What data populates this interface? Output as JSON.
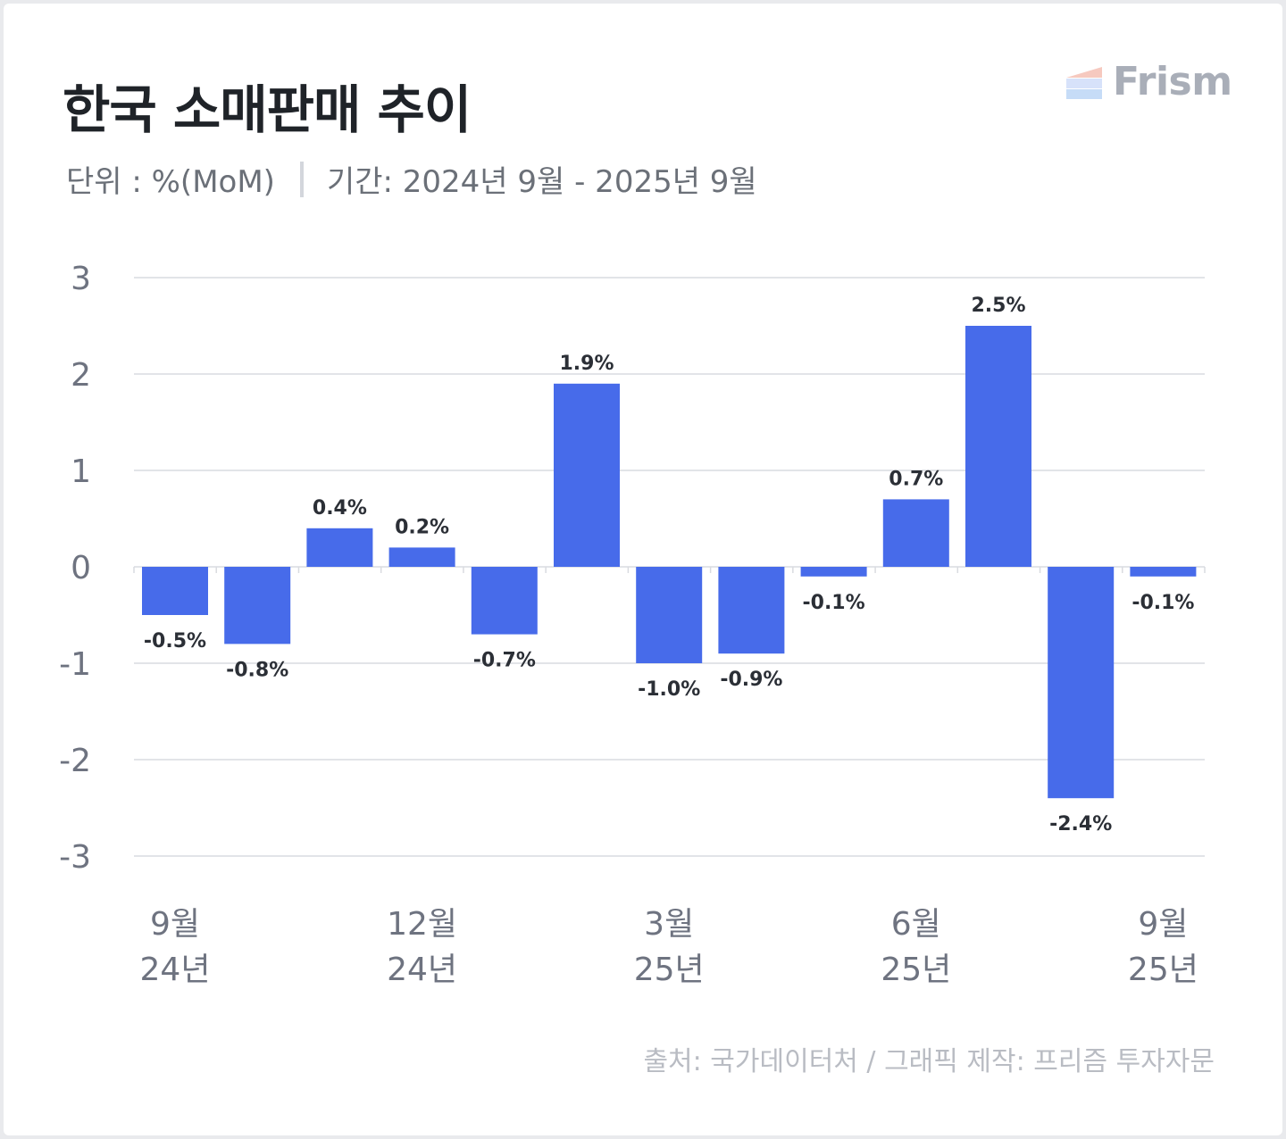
{
  "header": {
    "title": "한국 소매판매 추이",
    "unit": "단위 : %(MoM)",
    "period": "기간: 2024년 9월 - 2025년 9월"
  },
  "brand": {
    "name": "Frism"
  },
  "footer": {
    "source": "출처: 국가데이터처 / 그래픽 제작: 프리즘 투자자문"
  },
  "colors": {
    "bar": "#476bea",
    "grid": "#d9dbe0",
    "axis_text": "#6e7380",
    "label_text": "#2b2f36",
    "logo_stripes": [
      "#f6c9bf",
      "#d7e2fa",
      "#c6dcf7"
    ]
  },
  "chart_data": {
    "type": "bar",
    "title": "한국 소매판매 추이",
    "ylabel": "%(MoM)",
    "xlabel": "",
    "ylim": [
      -3,
      3
    ],
    "yticks": [
      3,
      2,
      1,
      0,
      -1,
      -2,
      -3
    ],
    "grid": true,
    "categories": [
      "2024-09",
      "2024-10",
      "2024-11",
      "2024-12",
      "2025-01",
      "2025-02",
      "2025-03",
      "2025-04",
      "2025-05",
      "2025-06",
      "2025-07",
      "2025-08",
      "2025-09"
    ],
    "values": [
      -0.5,
      -0.8,
      0.4,
      0.2,
      -0.7,
      1.9,
      -1.0,
      -0.9,
      -0.1,
      0.7,
      2.5,
      -2.4,
      -0.1
    ],
    "data_labels": [
      "-0.5%",
      "-0.8%",
      "0.4%",
      "0.2%",
      "-0.7%",
      "1.9%",
      "-1.0%",
      "-0.9%",
      "-0.1%",
      "0.7%",
      "2.5%",
      "-2.4%",
      "-0.1%"
    ],
    "xtick_labels": [
      {
        "index": 0,
        "month": "9월",
        "year": "24년"
      },
      {
        "index": 3,
        "month": "12월",
        "year": "24년"
      },
      {
        "index": 6,
        "month": "3월",
        "year": "25년"
      },
      {
        "index": 9,
        "month": "6월",
        "year": "25년"
      },
      {
        "index": 12,
        "month": "9월",
        "year": "25년"
      }
    ]
  }
}
